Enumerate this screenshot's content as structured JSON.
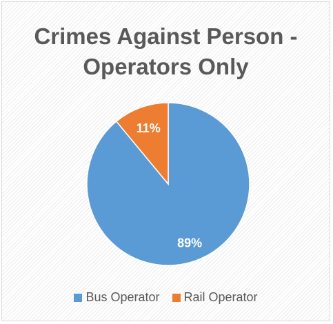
{
  "chart_data": {
    "type": "pie",
    "title": "Crimes Against Person - Operators Only",
    "title_lines": [
      "Crimes Against Person -",
      "Operators Only"
    ],
    "categories": [
      "Bus Operator",
      "Rail Operator"
    ],
    "values": [
      89,
      11
    ],
    "data_labels": [
      "89%",
      "11%"
    ],
    "colors": [
      "#5b9bd5",
      "#ed7d31"
    ],
    "legend_position": "bottom",
    "start_angle": "top, clockwise"
  }
}
